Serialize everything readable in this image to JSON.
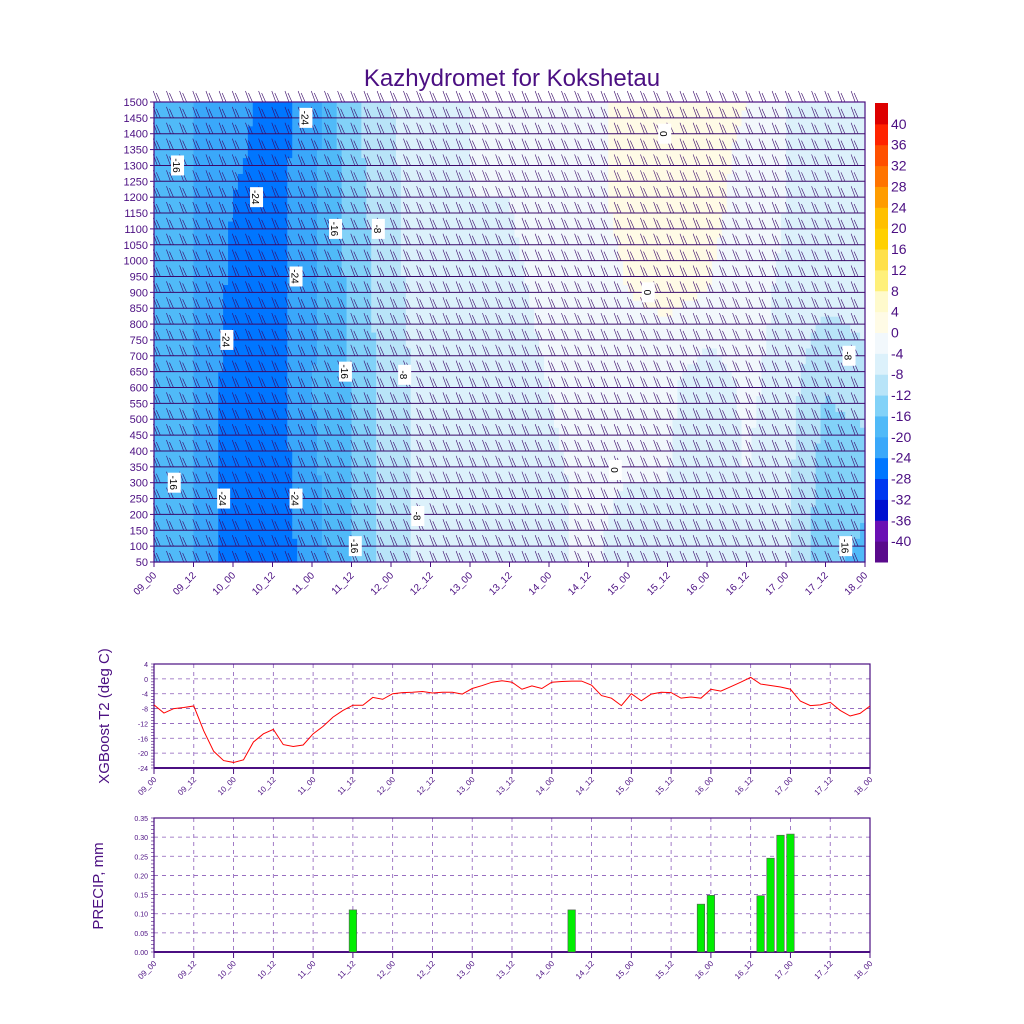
{
  "chart_data": [
    {
      "type": "heatmap",
      "title": "Kazhydromet for Kokshetau",
      "xlabel": "",
      "ylabel": "",
      "x_tick_labels": [
        "09_00",
        "09_12",
        "10_00",
        "10_12",
        "11_00",
        "11_12",
        "12_00",
        "12_12",
        "13_00",
        "13_12",
        "14_00",
        "14_12",
        "15_00",
        "15_12",
        "16_00",
        "16_12",
        "17_00",
        "17_12",
        "18_00"
      ],
      "x_range_hours": [
        0,
        216
      ],
      "y_tick_labels": [
        "50",
        "100",
        "150",
        "200",
        "250",
        "300",
        "350",
        "400",
        "450",
        "500",
        "550",
        "600",
        "650",
        "700",
        "750",
        "800",
        "850",
        "900",
        "950",
        "1000",
        "1050",
        "1100",
        "1150",
        "1200",
        "1250",
        "1300",
        "1350",
        "1400",
        "1450",
        "1500"
      ],
      "ylim": [
        50,
        1500
      ],
      "grid_hours": [
        0,
        12,
        24,
        36,
        48,
        60,
        72,
        84,
        96,
        108,
        120,
        132,
        144,
        156,
        168,
        180,
        192,
        204,
        216
      ],
      "grid_heights": [
        50,
        300,
        600,
        900,
        1200,
        1500
      ],
      "temperature": [
        [
          -18,
          -20,
          -26,
          -27,
          -22,
          -16,
          -10,
          -6,
          -5,
          -6,
          -5,
          -3,
          -6,
          -4,
          -5,
          -4,
          -7,
          -15,
          -17
        ],
        [
          -17,
          -20,
          -26,
          -27,
          -21,
          -16,
          -10,
          -6,
          -5,
          -7,
          -5,
          -3,
          -4,
          -4,
          -7,
          -4,
          -7,
          -14,
          -15
        ],
        [
          -17,
          -20,
          -26,
          -26,
          -20,
          -16,
          -10,
          -6,
          -4,
          -6,
          -4,
          -2,
          -3,
          -3,
          -7,
          -3,
          -6,
          -12,
          -10
        ],
        [
          -17,
          -20,
          -25,
          -26,
          -21,
          -15,
          -9,
          -6,
          -4,
          -5,
          -3,
          -2,
          0,
          1,
          0,
          -2,
          -5,
          -7,
          -6
        ],
        [
          -17,
          -20,
          -24,
          -26,
          -21,
          -14,
          -9,
          -5,
          -4,
          -4,
          -2,
          -1,
          1,
          2,
          1,
          -1,
          -4,
          -5,
          -5
        ],
        [
          -17,
          -20,
          -22,
          -26,
          -22,
          -13,
          -8,
          -5,
          -4,
          -4,
          -2,
          -1,
          1,
          2,
          1,
          0,
          -4,
          -5,
          -5
        ]
      ],
      "contour_labels": [
        {
          "text": "-24",
          "hour": 46,
          "height": 1450
        },
        {
          "text": "-16",
          "hour": 7,
          "height": 1300
        },
        {
          "text": "-24",
          "hour": 31,
          "height": 1200
        },
        {
          "text": "-16",
          "hour": 55,
          "height": 1100
        },
        {
          "text": "-8",
          "hour": 68,
          "height": 1100
        },
        {
          "text": "-24",
          "hour": 43,
          "height": 950
        },
        {
          "text": "-24",
          "hour": 22,
          "height": 750
        },
        {
          "text": "-16",
          "hour": 58,
          "height": 650
        },
        {
          "text": "-8",
          "hour": 76,
          "height": 640
        },
        {
          "text": "-16",
          "hour": 6,
          "height": 300
        },
        {
          "text": "-24",
          "hour": 21,
          "height": 250
        },
        {
          "text": "-24",
          "hour": 43,
          "height": 250
        },
        {
          "text": "-8",
          "hour": 80,
          "height": 195
        },
        {
          "text": "-16",
          "hour": 61,
          "height": 100
        },
        {
          "text": "-16",
          "hour": 210,
          "height": 100
        },
        {
          "text": "-8",
          "hour": 211,
          "height": 700
        },
        {
          "text": "0",
          "hour": 155,
          "height": 1400
        },
        {
          "text": "0",
          "hour": 150,
          "height": 900
        },
        {
          "text": "0",
          "hour": 140,
          "height": 340
        }
      ],
      "colorbar": {
        "levels": [
          "-40",
          "-36",
          "-32",
          "-28",
          "-24",
          "-20",
          "-16",
          "-12",
          "-8",
          "-4",
          "0",
          "4",
          "8",
          "12",
          "16",
          "20",
          "24",
          "28",
          "32",
          "36",
          "40"
        ],
        "colors": [
          "#5a0a8c",
          "#6a10b4",
          "#0010d0",
          "#0038f0",
          "#0076ff",
          "#3aa8fa",
          "#50baf8",
          "#82d2f8",
          "#b8e4f8",
          "#dcf1fb",
          "#f2f8fc",
          "#fffbe6",
          "#fffacc",
          "#fff07a",
          "#ffe048",
          "#ffd000",
          "#ffc000",
          "#ff9c00",
          "#ff7400",
          "#ff5000",
          "#ff2400",
          "#dd0000"
        ]
      }
    },
    {
      "type": "line",
      "ylabel": "XGBoost T2 (deg C)",
      "ylim": [
        -24,
        4
      ],
      "y_tick_labels": [
        "4",
        "0",
        "-4",
        "-8",
        "-12",
        "-16",
        "-20",
        "-24"
      ],
      "x_tick_labels": [
        "09_00",
        "09_12",
        "10_00",
        "10_12",
        "11_00",
        "11_12",
        "12_00",
        "12_12",
        "13_00",
        "13_12",
        "14_00",
        "14_12",
        "15_00",
        "15_12",
        "16_00",
        "16_12",
        "17_00",
        "17_12",
        "18_00"
      ],
      "x_step_hours": 3,
      "series": [
        {
          "name": "T2",
          "color": "#ff0000",
          "values": [
            -7,
            -9.2,
            -8,
            -7.7,
            -7.3,
            -14,
            -19.5,
            -22,
            -22.5,
            -21.8,
            -17,
            -14.8,
            -13.6,
            -17.7,
            -18.2,
            -17.8,
            -14.8,
            -12.8,
            -10.3,
            -8.5,
            -7.1,
            -7.1,
            -5,
            -5.5,
            -4,
            -3.7,
            -3.6,
            -3.4,
            -3.8,
            -3.6,
            -3.6,
            -4.1,
            -2.6,
            -1.8,
            -0.9,
            -0.5,
            -0.9,
            -2.8,
            -1.9,
            -2.6,
            -0.9,
            -0.7,
            -0.6,
            -0.6,
            -1.7,
            -4.5,
            -5.2,
            -7.2,
            -4,
            -5.9,
            -4.1,
            -3.6,
            -3.7,
            -5.2,
            -4.9,
            -5.2,
            -2.8,
            -3.3,
            -2.1,
            -0.9,
            0.4,
            -1.4,
            -1.8,
            -2.2,
            -2.8,
            -6,
            -7.2,
            -7,
            -6.3,
            -8.5,
            -10,
            -9.3,
            -7.3
          ]
        }
      ]
    },
    {
      "type": "bar",
      "ylabel": "PRECIP, mm",
      "ylim": [
        0,
        0.35
      ],
      "y_tick_labels": [
        "0.35",
        "0.30",
        "0.25",
        "0.20",
        "0.15",
        "0.10",
        "0.05",
        "0.00"
      ],
      "x_tick_labels": [
        "09_00",
        "09_12",
        "10_00",
        "10_12",
        "11_00",
        "11_12",
        "12_00",
        "12_12",
        "13_00",
        "13_12",
        "14_00",
        "14_12",
        "15_00",
        "15_12",
        "16_00",
        "16_12",
        "17_00",
        "17_12",
        "18_00"
      ],
      "bars": [
        {
          "hour": 60,
          "value": 0.11
        },
        {
          "hour": 126,
          "value": 0.11
        },
        {
          "hour": 165,
          "value": 0.125
        },
        {
          "hour": 168,
          "value": 0.148
        },
        {
          "hour": 183,
          "value": 0.147
        },
        {
          "hour": 186,
          "value": 0.245
        },
        {
          "hour": 189,
          "value": 0.305
        },
        {
          "hour": 192,
          "value": 0.308
        }
      ],
      "bar_color": "#00ee00"
    }
  ]
}
